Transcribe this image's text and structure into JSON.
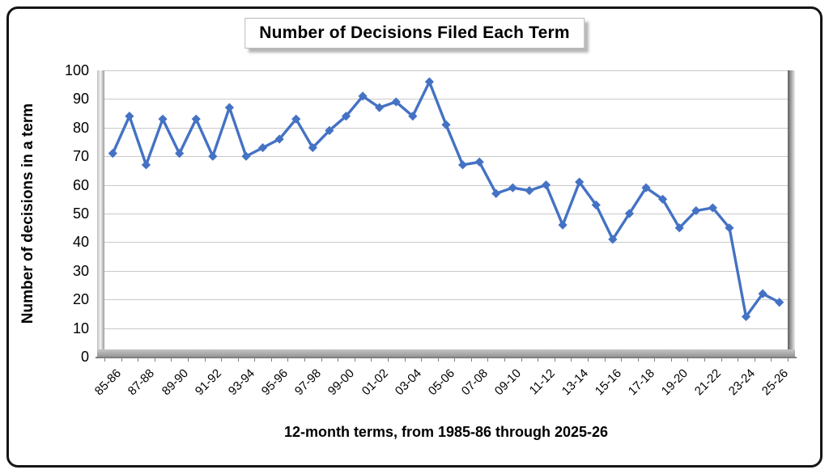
{
  "page": {
    "background": "#ffffff",
    "border_color": "#151515"
  },
  "chart_data": {
    "type": "line",
    "title": "Number of Decisions Filed Each Term",
    "xlabel": "12-month terms, from 1985-86 through 2025-26",
    "ylabel": "Number of decisions in a term",
    "ylim": [
      0,
      100
    ],
    "y_ticks": [
      0,
      10,
      20,
      30,
      40,
      50,
      60,
      70,
      80,
      90,
      100
    ],
    "grid": true,
    "legend_position": "none",
    "line_color": "#4472C4",
    "marker": "diamond",
    "x_label_every": 2,
    "x_tick_labels": [
      "85-86",
      "87-88",
      "89-90",
      "91-92",
      "93-94",
      "95-96",
      "97-98",
      "99-00",
      "01-02",
      "03-04",
      "05-06",
      "07-08",
      "09-10",
      "11-12",
      "13-14",
      "15-16",
      "17-18",
      "19-20",
      "21-22",
      "23-24",
      "25-26"
    ],
    "terms": [
      "85-86",
      "86-87",
      "87-88",
      "88-89",
      "89-90",
      "90-91",
      "91-92",
      "92-93",
      "93-94",
      "94-95",
      "95-96",
      "96-97",
      "97-98",
      "98-99",
      "99-00",
      "00-01",
      "01-02",
      "02-03",
      "03-04",
      "04-05",
      "05-06",
      "06-07",
      "07-08",
      "08-09",
      "09-10",
      "10-11",
      "11-12",
      "12-13",
      "13-14",
      "14-15",
      "15-16",
      "16-17",
      "17-18",
      "18-19",
      "19-20",
      "20-21",
      "21-22",
      "22-23",
      "23-24",
      "24-25",
      "25-26"
    ],
    "values": [
      71,
      84,
      67,
      83,
      71,
      83,
      70,
      87,
      70,
      73,
      76,
      83,
      73,
      79,
      84,
      91,
      87,
      89,
      84,
      96,
      81,
      67,
      68,
      57,
      59,
      58,
      60,
      46,
      61,
      53,
      41,
      50,
      59,
      55,
      45,
      51,
      52,
      45,
      14,
      22,
      19
    ]
  }
}
